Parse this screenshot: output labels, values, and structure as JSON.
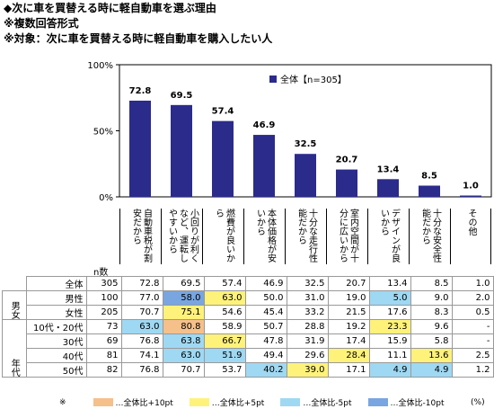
{
  "titles": {
    "line1": "◆次に車を買替える時に軽自動車を選ぶ理由",
    "line2": "※複数回答形式",
    "line3": "※対象：次に車を買替える時に軽自動車を購入したい人"
  },
  "colors": {
    "bar": "#2B2B8C",
    "orange": "#F5C08A",
    "yellow": "#FFF27A",
    "cyan": "#9FD8F2",
    "blue": "#79A6E0"
  },
  "chart_data": {
    "type": "bar",
    "categories": [
      "自動車税が割安だから",
      "小回りが利くなど、運転しやすいから",
      "燃費が良いから",
      "本体価格が安いから",
      "十分な走行性能だから",
      "室内空間が十分に広いから",
      "デザインが良いから",
      "十分な安全性能だから",
      "その他"
    ],
    "series": [
      {
        "name": "全体【n=305】",
        "values": [
          72.8,
          69.5,
          57.4,
          46.9,
          32.5,
          20.7,
          13.4,
          8.5,
          1.0
        ]
      }
    ],
    "value_labels": [
      "72.8",
      "69.5",
      "57.4",
      "46.9",
      "32.5",
      "20.7",
      "13.4",
      "8.5",
      "1.0"
    ],
    "yticks": [
      "0%",
      "50%",
      "100%"
    ],
    "ylim": [
      0,
      100
    ]
  },
  "legend": {
    "label": "全体【n=305】"
  },
  "table": {
    "n_header": "n数",
    "rows": [
      {
        "group": "",
        "label": "全体",
        "n": "305",
        "values": [
          "72.8",
          "69.5",
          "57.4",
          "46.9",
          "32.5",
          "20.7",
          "13.4",
          "8.5",
          "1.0"
        ],
        "colors": [
          "",
          "",
          "",
          "",
          "",
          "",
          "",
          "",
          ""
        ]
      },
      {
        "group": "男女",
        "label": "男性",
        "n": "100",
        "values": [
          "77.0",
          "58.0",
          "63.0",
          "50.0",
          "31.0",
          "19.0",
          "5.0",
          "9.0",
          "2.0"
        ],
        "colors": [
          "",
          "blue",
          "yellow",
          "",
          "",
          "",
          "cyan",
          "",
          ""
        ]
      },
      {
        "group": "",
        "label": "女性",
        "n": "205",
        "values": [
          "70.7",
          "75.1",
          "54.6",
          "45.4",
          "33.2",
          "21.5",
          "17.6",
          "8.3",
          "0.5"
        ],
        "colors": [
          "",
          "yellow",
          "",
          "",
          "",
          "",
          "",
          "",
          ""
        ]
      },
      {
        "group": "年代",
        "label": "10代・20代",
        "n": "73",
        "values": [
          "63.0",
          "80.8",
          "58.9",
          "50.7",
          "28.8",
          "19.2",
          "23.3",
          "9.6",
          "-"
        ],
        "colors": [
          "cyan",
          "orange",
          "",
          "",
          "",
          "",
          "yellow",
          "",
          ""
        ]
      },
      {
        "group": "",
        "label": "30代",
        "n": "69",
        "values": [
          "76.8",
          "63.8",
          "66.7",
          "47.8",
          "31.9",
          "17.4",
          "15.9",
          "5.8",
          "-"
        ],
        "colors": [
          "",
          "cyan",
          "yellow",
          "",
          "",
          "",
          "",
          "",
          ""
        ]
      },
      {
        "group": "",
        "label": "40代",
        "n": "81",
        "values": [
          "74.1",
          "63.0",
          "51.9",
          "49.4",
          "29.6",
          "28.4",
          "11.1",
          "13.6",
          "2.5"
        ],
        "colors": [
          "",
          "cyan",
          "cyan",
          "",
          "",
          "yellow",
          "",
          "yellow",
          ""
        ]
      },
      {
        "group": "",
        "label": "50代",
        "n": "82",
        "values": [
          "76.8",
          "70.7",
          "53.7",
          "40.2",
          "39.0",
          "17.1",
          "4.9",
          "4.9",
          "1.2"
        ],
        "colors": [
          "",
          "",
          "",
          "cyan",
          "yellow",
          "",
          "cyan",
          "cyan",
          ""
        ]
      }
    ]
  },
  "footer": {
    "mark": "※",
    "items": [
      {
        "color": "orange",
        "label": "…全体比+10pt"
      },
      {
        "color": "yellow",
        "label": "…全体比+5pt"
      },
      {
        "color": "cyan",
        "label": "…全体比-5pt"
      },
      {
        "color": "blue",
        "label": "…全体比-10pt"
      }
    ],
    "unit": "(%)"
  }
}
